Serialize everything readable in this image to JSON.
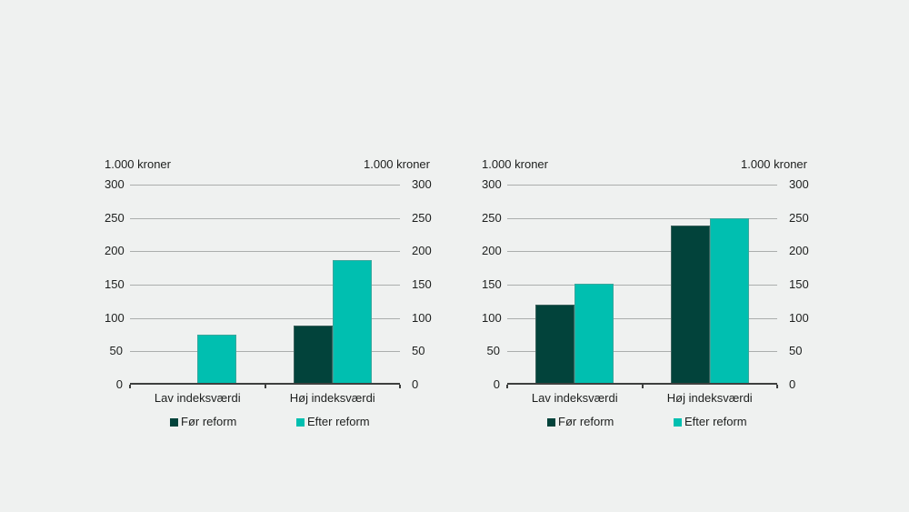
{
  "page": {
    "background": "#eff1f0",
    "text_color": "#1d1f1e",
    "grid_color": "#abaead",
    "axis_color": "#3e403f"
  },
  "chart_data": [
    {
      "type": "bar",
      "unit_label_left": "1.000 kroner",
      "unit_label_right": "1.000 kroner",
      "categories": [
        "Lav indeksværdi",
        "Høj indeksværdi"
      ],
      "series": [
        {
          "name": "Før reform",
          "color": "#02433b",
          "values": [
            0,
            88
          ]
        },
        {
          "name": "Efter reform",
          "color": "#00bfb0",
          "values": [
            75,
            187
          ]
        }
      ],
      "ylim": [
        0,
        300
      ],
      "yticks": [
        300,
        250,
        200,
        150,
        100,
        50,
        0
      ],
      "grid": true,
      "legend_position": "bottom"
    },
    {
      "type": "bar",
      "unit_label_left": "1.000 kroner",
      "unit_label_right": "1.000 kroner",
      "categories": [
        "Lav indeksværdi",
        "Høj indeksværdi"
      ],
      "series": [
        {
          "name": "Før reform",
          "color": "#02433b",
          "values": [
            120,
            238
          ]
        },
        {
          "name": "Efter reform",
          "color": "#00bfb0",
          "values": [
            151,
            250
          ]
        }
      ],
      "ylim": [
        0,
        300
      ],
      "yticks": [
        300,
        250,
        200,
        150,
        100,
        50,
        0
      ],
      "grid": true,
      "legend_position": "bottom"
    }
  ]
}
